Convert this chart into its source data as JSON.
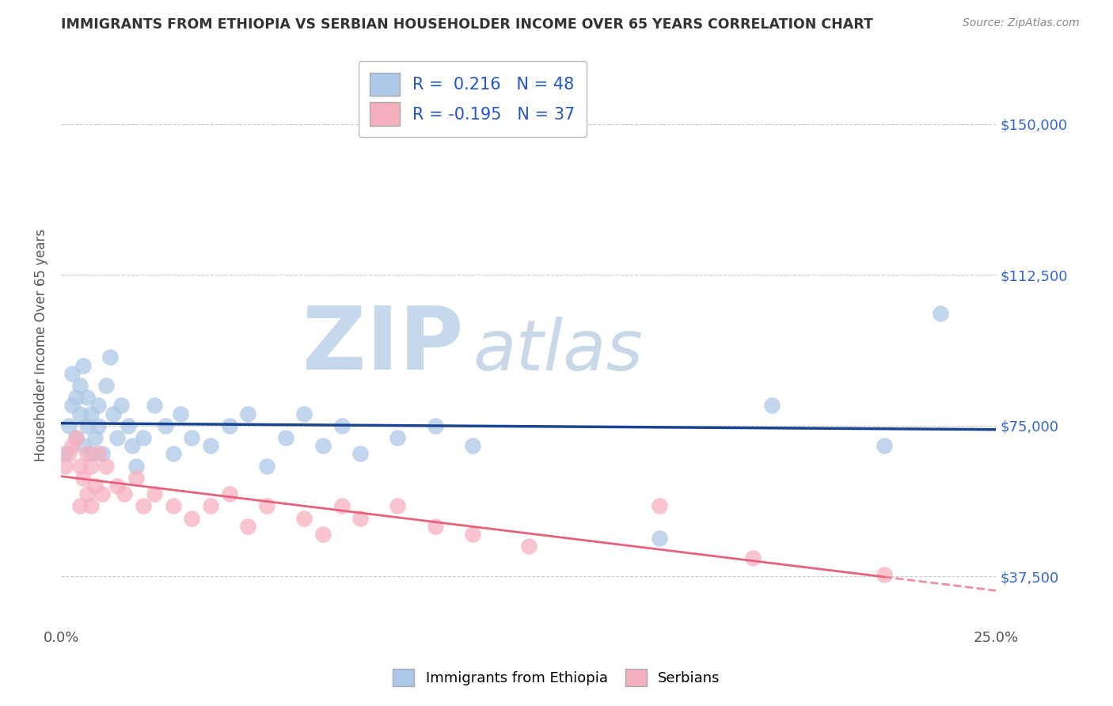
{
  "title": "IMMIGRANTS FROM ETHIOPIA VS SERBIAN HOUSEHOLDER INCOME OVER 65 YEARS CORRELATION CHART",
  "source": "Source: ZipAtlas.com",
  "ylabel": "Householder Income Over 65 years",
  "xlim": [
    0.0,
    0.25
  ],
  "ylim": [
    25000,
    165000
  ],
  "yticks": [
    37500,
    75000,
    112500,
    150000
  ],
  "yticklabels": [
    "$37,500",
    "$75,000",
    "$112,500",
    "$150,000"
  ],
  "R_blue": 0.216,
  "N_blue": 48,
  "R_pink": -0.195,
  "N_pink": 37,
  "legend_label_blue": "Immigrants from Ethiopia",
  "legend_label_pink": "Serbians",
  "blue_color": "#adc8e8",
  "pink_color": "#f5b0c0",
  "blue_line_color": "#1a4490",
  "pink_line_color": "#e8607a",
  "watermark_zip_color": "#c5d8ec",
  "watermark_atlas_color": "#c8d8e8",
  "background_color": "#ffffff",
  "ethiopia_x": [
    0.001,
    0.002,
    0.003,
    0.003,
    0.004,
    0.004,
    0.005,
    0.005,
    0.006,
    0.006,
    0.007,
    0.007,
    0.008,
    0.008,
    0.009,
    0.01,
    0.01,
    0.011,
    0.012,
    0.013,
    0.014,
    0.015,
    0.016,
    0.018,
    0.019,
    0.02,
    0.022,
    0.025,
    0.028,
    0.03,
    0.032,
    0.035,
    0.04,
    0.045,
    0.05,
    0.055,
    0.06,
    0.065,
    0.07,
    0.075,
    0.08,
    0.09,
    0.1,
    0.11,
    0.16,
    0.19,
    0.22,
    0.235
  ],
  "ethiopia_y": [
    68000,
    75000,
    80000,
    88000,
    72000,
    82000,
    78000,
    85000,
    70000,
    90000,
    75000,
    82000,
    68000,
    78000,
    72000,
    75000,
    80000,
    68000,
    85000,
    92000,
    78000,
    72000,
    80000,
    75000,
    70000,
    65000,
    72000,
    80000,
    75000,
    68000,
    78000,
    72000,
    70000,
    75000,
    78000,
    65000,
    72000,
    78000,
    70000,
    75000,
    68000,
    72000,
    75000,
    70000,
    47000,
    80000,
    70000,
    103000
  ],
  "serbian_x": [
    0.001,
    0.002,
    0.003,
    0.004,
    0.005,
    0.005,
    0.006,
    0.007,
    0.007,
    0.008,
    0.008,
    0.009,
    0.01,
    0.011,
    0.012,
    0.015,
    0.017,
    0.02,
    0.022,
    0.025,
    0.03,
    0.035,
    0.04,
    0.045,
    0.05,
    0.055,
    0.065,
    0.07,
    0.075,
    0.08,
    0.09,
    0.1,
    0.11,
    0.125,
    0.16,
    0.185,
    0.22
  ],
  "serbian_y": [
    65000,
    68000,
    70000,
    72000,
    65000,
    55000,
    62000,
    68000,
    58000,
    65000,
    55000,
    60000,
    68000,
    58000,
    65000,
    60000,
    58000,
    62000,
    55000,
    58000,
    55000,
    52000,
    55000,
    58000,
    50000,
    55000,
    52000,
    48000,
    55000,
    52000,
    55000,
    50000,
    48000,
    45000,
    55000,
    42000,
    38000
  ]
}
